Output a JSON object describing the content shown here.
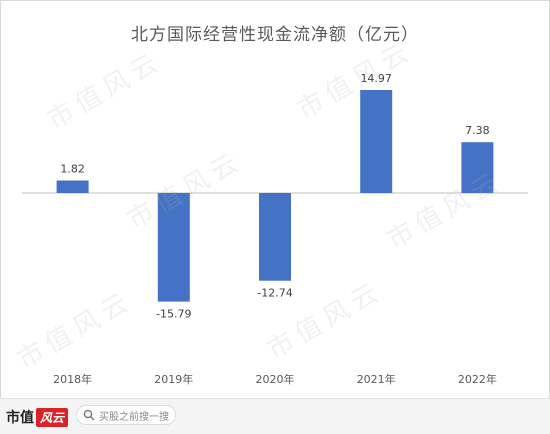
{
  "chart_data": {
    "type": "bar",
    "title": "北方国际经营性现金流净额（亿元）",
    "categories": [
      "2018年",
      "2019年",
      "2020年",
      "2021年",
      "2022年"
    ],
    "values": [
      1.82,
      -15.79,
      -12.74,
      14.97,
      7.38
    ],
    "value_labels": [
      "1.82",
      "-15.79",
      "-12.74",
      "14.97",
      "7.38"
    ],
    "xlabel": "",
    "ylabel": "",
    "ylim": [
      -17,
      17
    ],
    "grid": false,
    "legend": "none",
    "bar_color": "#4472C4"
  },
  "watermark": {
    "text": "市值风云"
  },
  "footer": {
    "brand_text": "市值",
    "brand_badge": "风云",
    "search_placeholder": "买股之前搜一搜",
    "search_icon": "search-icon"
  }
}
